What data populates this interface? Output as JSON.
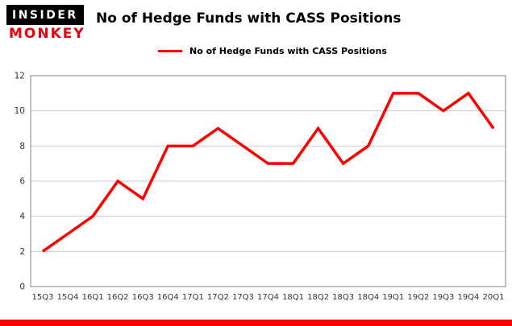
{
  "logo": {
    "line1": "INSIDER",
    "line2": "MONKEY"
  },
  "header": {
    "title": "No of Hedge Funds with CASS Positions"
  },
  "legend": {
    "label": "No of Hedge Funds with CASS Positions"
  },
  "chart_data": {
    "type": "line",
    "title": "No of Hedge Funds with CASS Positions",
    "categories": [
      "15Q3",
      "15Q4",
      "16Q1",
      "16Q2",
      "16Q3",
      "16Q4",
      "17Q1",
      "17Q2",
      "17Q3",
      "17Q4",
      "18Q1",
      "18Q2",
      "18Q3",
      "18Q4",
      "19Q1",
      "19Q2",
      "19Q3",
      "19Q4",
      "20Q1"
    ],
    "series": [
      {
        "name": "No of Hedge Funds with CASS Positions",
        "values": [
          2,
          3,
          4,
          6,
          5,
          8,
          8,
          9,
          8,
          7,
          7,
          9,
          7,
          8,
          11,
          11,
          10,
          11,
          9
        ]
      }
    ],
    "xlabel": "",
    "ylabel": "",
    "ylim": [
      0,
      12
    ],
    "yticks": [
      0,
      2,
      4,
      6,
      8,
      10,
      12
    ],
    "grid": true,
    "legend_position": "top-left",
    "line_color": "#ff0000"
  },
  "colors": {
    "accent_red": "#ff0000",
    "logo_black": "#000000",
    "logo_red": "#e8000d",
    "grid": "#cccccc",
    "axis_text": "#333333",
    "plot_border": "#808080",
    "bottom_bar": "#fe0000"
  }
}
